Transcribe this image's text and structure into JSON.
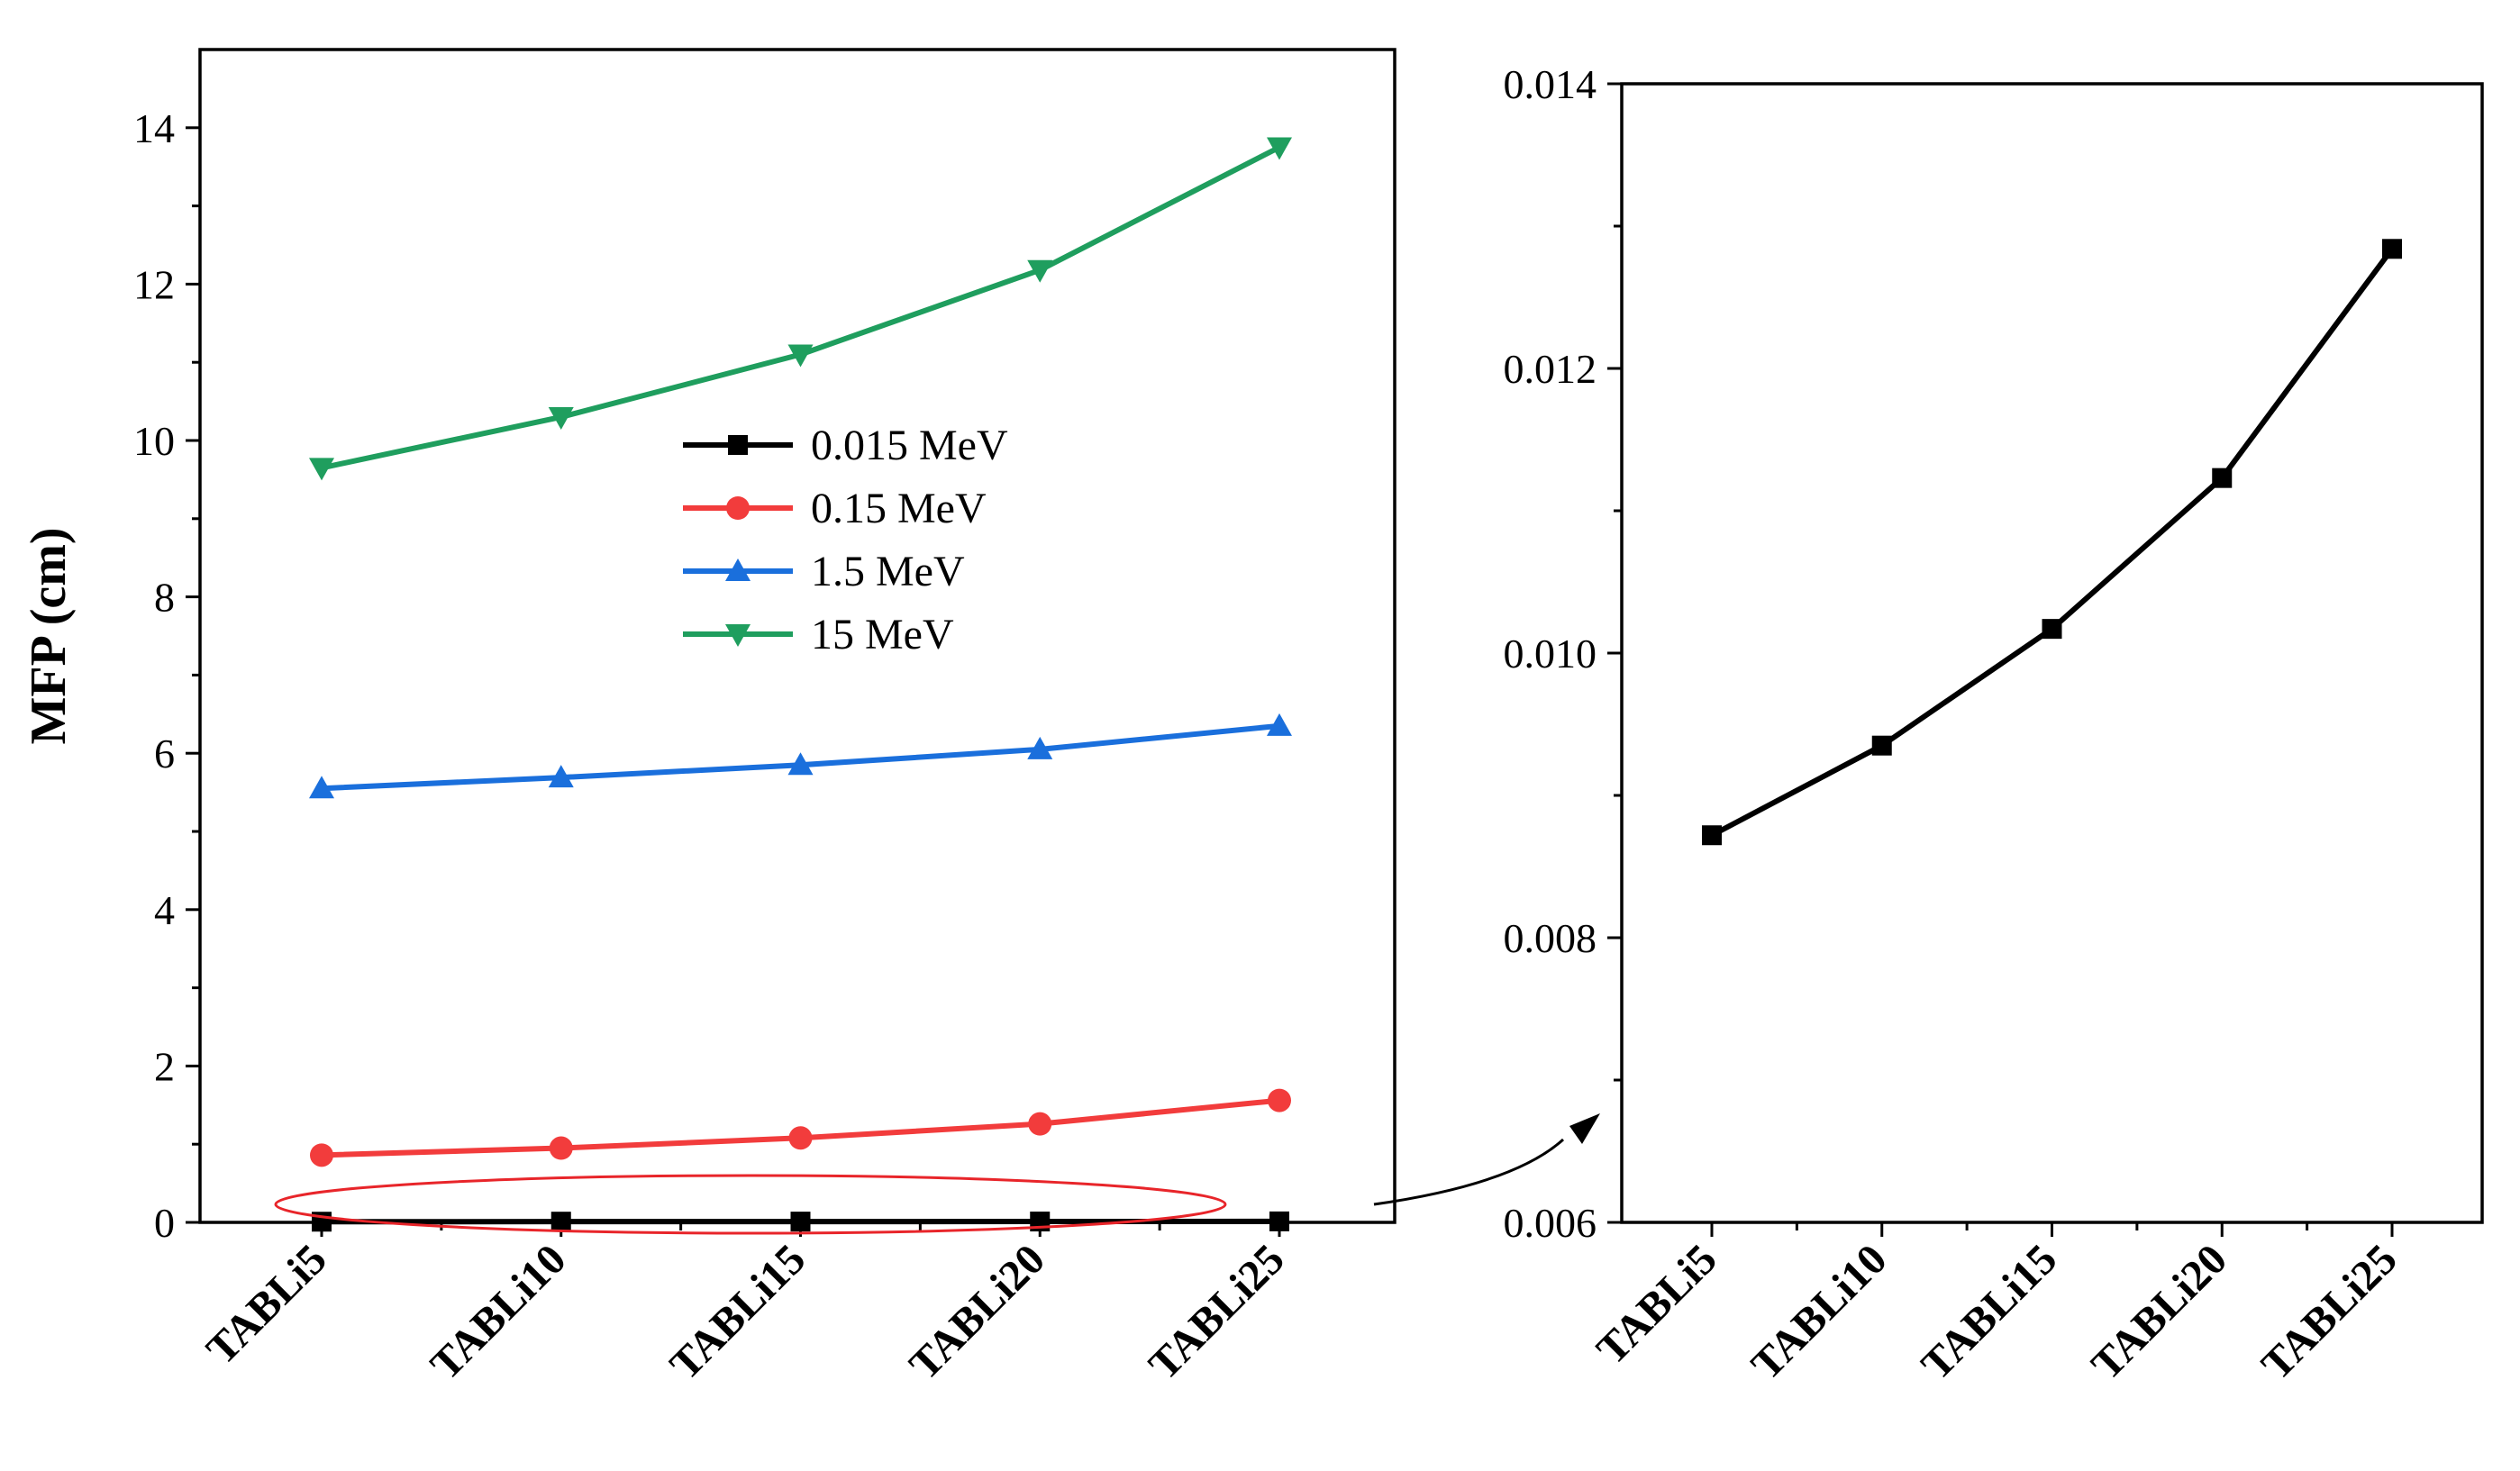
{
  "chart_data": [
    {
      "type": "line",
      "categories": [
        "TABLi5",
        "TABLi10",
        "TABLi15",
        "TABLi20",
        "TABLi25"
      ],
      "ylabel": "MFP (cm)",
      "xlabel": "",
      "ylim": [
        0,
        15
      ],
      "yticks": [
        "0",
        "2",
        "4",
        "6",
        "8",
        "10",
        "12",
        "14"
      ],
      "legend_position": "center",
      "series": [
        {
          "name": "0.015 MeV",
          "color": "#000000",
          "marker": "square",
          "values": [
            0.0087,
            0.0094,
            0.0102,
            0.0112,
            0.0128
          ]
        },
        {
          "name": "0.15 MeV",
          "color": "#f23c3c",
          "marker": "circle",
          "values": [
            0.86,
            0.95,
            1.08,
            1.26,
            1.56
          ]
        },
        {
          "name": "1.5 MeV",
          "color": "#1a6fdc",
          "marker": "triangle-up",
          "values": [
            5.55,
            5.69,
            5.85,
            6.05,
            6.35
          ]
        },
        {
          "name": "15 MeV",
          "color": "#1f9e5e",
          "marker": "triangle-down",
          "values": [
            9.65,
            10.3,
            11.1,
            12.18,
            13.75
          ]
        }
      ],
      "annotation": "red ellipse highlighting the 0.015 MeV series, with arrow pointing to the zoomed panel"
    },
    {
      "type": "line",
      "categories": [
        "TABLi5",
        "TABLi10",
        "TABLi15",
        "TABLi20",
        "TABLi25"
      ],
      "ylabel": "",
      "xlabel": "",
      "ylim": [
        0.006,
        0.014
      ],
      "yticks": [
        "0.006",
        "0.008",
        "0.010",
        "0.012",
        "0.014"
      ],
      "series": [
        {
          "name": "0.015 MeV",
          "color": "#000000",
          "marker": "square",
          "values": [
            0.00872,
            0.00935,
            0.01017,
            0.01123,
            0.01284
          ]
        }
      ]
    }
  ]
}
